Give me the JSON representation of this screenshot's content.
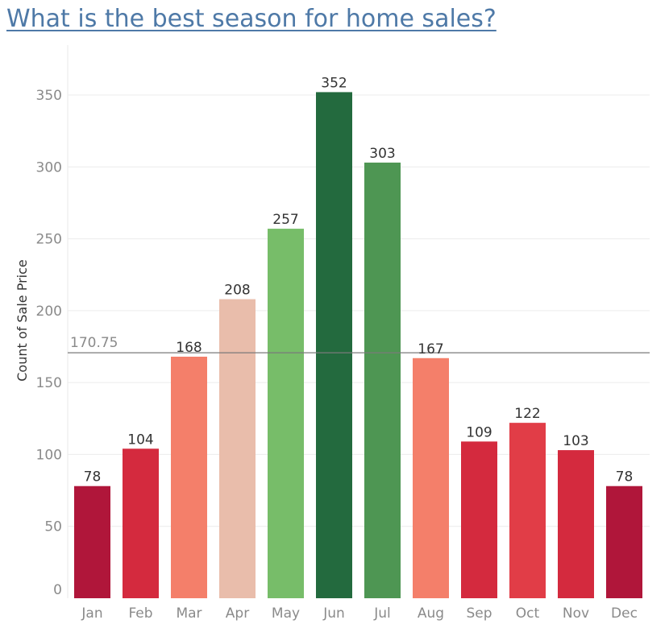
{
  "chart_data": {
    "type": "bar",
    "title": "What is the best season for home sales?",
    "xlabel": "",
    "ylabel": "Count of Sale Price",
    "categories": [
      "Jan",
      "Feb",
      "Mar",
      "Apr",
      "May",
      "Jun",
      "Jul",
      "Aug",
      "Sep",
      "Oct",
      "Nov",
      "Dec"
    ],
    "values": [
      78,
      104,
      168,
      208,
      257,
      352,
      303,
      167,
      109,
      122,
      103,
      78
    ],
    "bar_colors": [
      "#b0163a",
      "#d42a3e",
      "#f47f6a",
      "#e9bdab",
      "#77bd69",
      "#236a3e",
      "#4e9653",
      "#f47f6a",
      "#d42a3e",
      "#e13d47",
      "#d42a3e",
      "#b0163a"
    ],
    "ylim": [
      0,
      380
    ],
    "yticks": [
      0,
      50,
      100,
      150,
      200,
      250,
      300,
      350
    ],
    "reference_line": {
      "value": 170.75,
      "label": "170.75"
    },
    "grid": true,
    "data_labels": true
  }
}
